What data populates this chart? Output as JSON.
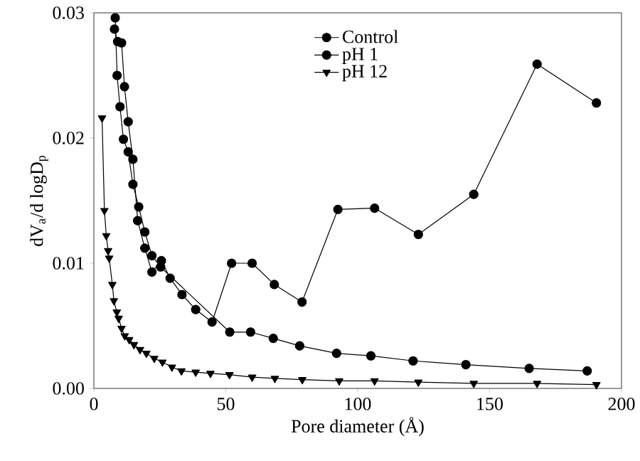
{
  "chart_data": {
    "type": "line",
    "xlabel": "Pore diameter (Å)",
    "ylabel": "dV$_{a}$/d logD$_{p}$",
    "xlim": [
      0,
      200
    ],
    "xticks": [
      0,
      50,
      100,
      150,
      200
    ],
    "ylim": [
      0,
      0.03
    ],
    "yticks": [
      {
        "value": 0,
        "label": "0.00"
      },
      {
        "value": 0.01,
        "label": "0.01"
      },
      {
        "value": 0.02,
        "label": "0.02"
      },
      {
        "value": 0.03,
        "label": "0.03"
      }
    ],
    "grid": false,
    "legend": "top",
    "line_style": "solid",
    "series": [
      {
        "name": "Control",
        "color": "#000000",
        "marker": "circle",
        "x": [
          8.1,
          8.8,
          9.9,
          11.2,
          13,
          14.8,
          17,
          19.3,
          22,
          25.3,
          29,
          33,
          38,
          44,
          51.5,
          59.4,
          68,
          78,
          92,
          105,
          121,
          141,
          165,
          187
        ],
        "values": [
          0.0296,
          0.025,
          0.0225,
          0.0199,
          0.0189,
          0.0163,
          0.0145,
          0.0125,
          0.0106,
          0.0097,
          null,
          null,
          null,
          null,
          0.0045,
          0.0045,
          0.004,
          0.0034,
          0.0028,
          0.0026,
          0.0022,
          0.0019,
          0.0016,
          0.0014
        ]
      },
      {
        "name": "pH 1",
        "color": "#000000",
        "marker": "circle",
        "x": [
          7.8,
          9,
          10.5,
          11.6,
          13,
          14.8,
          16.6,
          19.3,
          22,
          25.6,
          28.9,
          33.4,
          38.6,
          44.8,
          52.2,
          60,
          68.4,
          78.9,
          92.5,
          106.4,
          123,
          144,
          168,
          190.5
        ],
        "values": [
          0.0287,
          0.0277,
          0.0276,
          0.0241,
          0.0213,
          0.0183,
          0.0134,
          0.0112,
          0.0093,
          0.0102,
          0.0088,
          0.0075,
          0.0063,
          0.0053,
          0.01,
          0.01,
          0.0083,
          0.0069,
          0.0143,
          0.0144,
          0.0123,
          0.0155,
          0.0259,
          0.0228
        ]
      },
      {
        "name": "pH 12",
        "color": "#000000",
        "marker": "triangle",
        "x": [
          3.1,
          4,
          4.7,
          5.4,
          5.8,
          7,
          7.6,
          8.7,
          9.4,
          10.5,
          11.7,
          13.4,
          15.2,
          17.5,
          19.9,
          22.9,
          26,
          29.6,
          33.2,
          38.6,
          44.2,
          51.4,
          60,
          68.6,
          79,
          93,
          106.4,
          123,
          144,
          168,
          190.5
        ],
        "values": [
          0.0216,
          0.0142,
          0.0122,
          0.011,
          0.0104,
          0.0083,
          0.007,
          0.0061,
          0.0056,
          0.0048,
          0.0042,
          0.0039,
          0.0035,
          0.0031,
          0.0028,
          0.0024,
          0.0021,
          0.0017,
          0.0014,
          0.0013,
          0.0012,
          0.0011,
          0.0009,
          0.0008,
          0.0007,
          0.0006,
          0.0006,
          0.0005,
          0.0004,
          0.0004,
          0.0003
        ]
      }
    ]
  }
}
